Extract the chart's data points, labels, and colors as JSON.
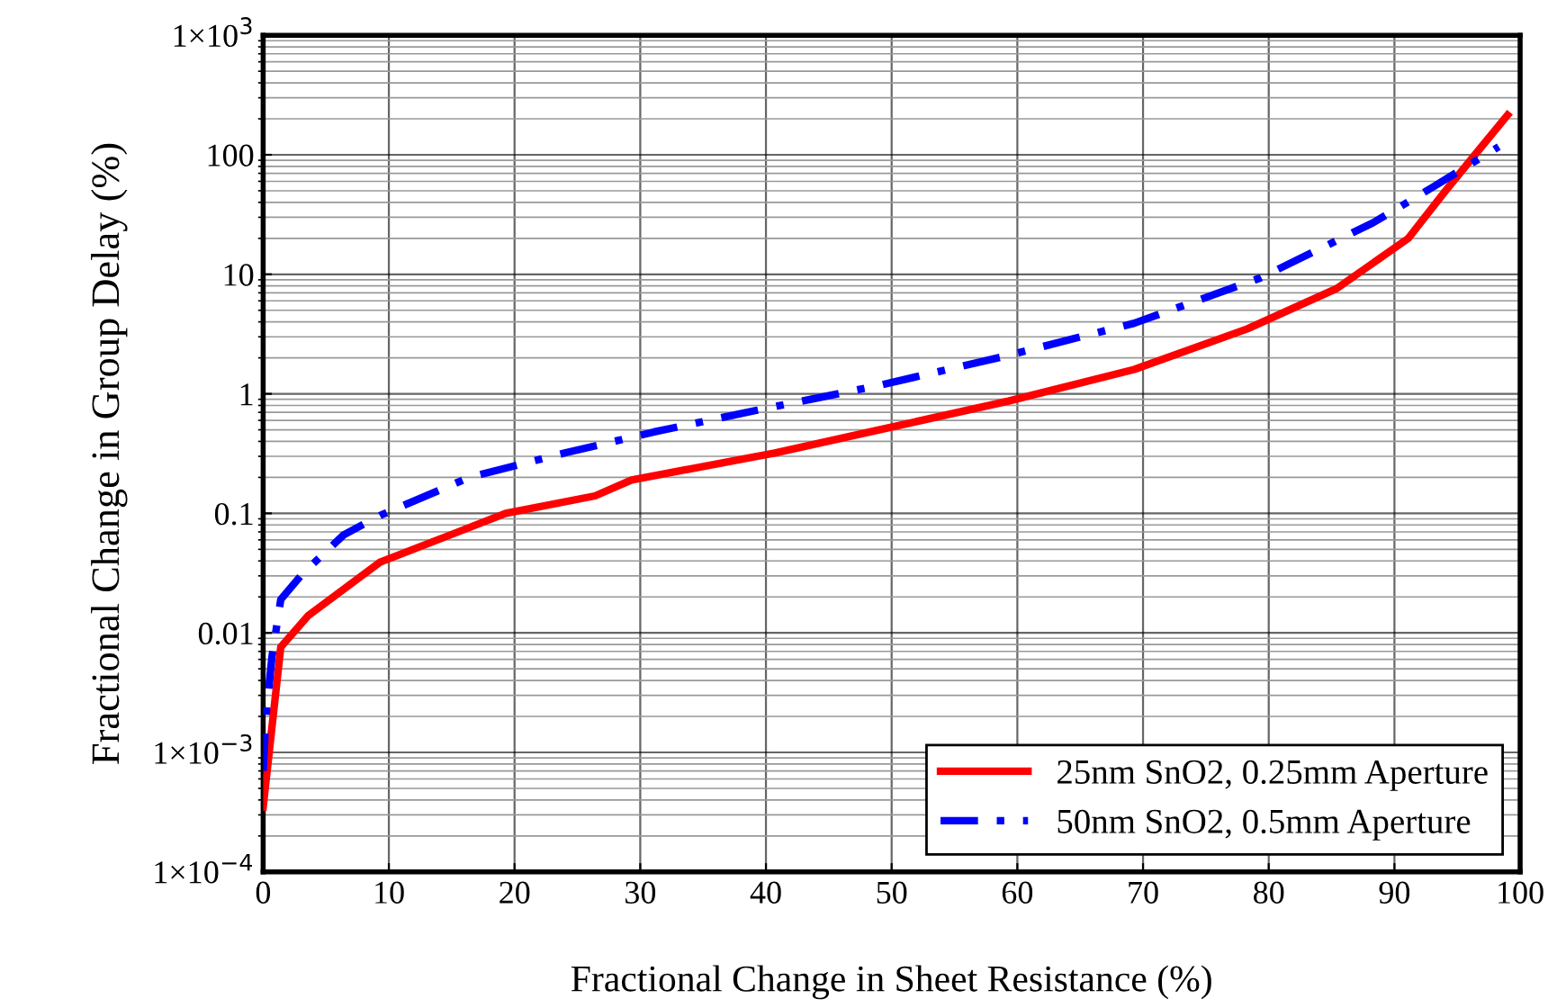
{
  "chart_data": {
    "type": "line",
    "xlabel": "Fractional Change in Sheet Resistance (%)",
    "ylabel": "Fractional Change in Group Delay (%)",
    "log": "y",
    "xlim": [
      0,
      100
    ],
    "ylim": [
      0.0001,
      1000
    ],
    "xticks": [
      0,
      10,
      20,
      30,
      40,
      50,
      60,
      70,
      80,
      90,
      100
    ],
    "yticks": [
      {
        "value": 0.0001,
        "label": "1×10$^{−4}$"
      },
      {
        "value": 0.001,
        "label": "1×10$^{−3}$"
      },
      0.01,
      0.1,
      1,
      10,
      100,
      {
        "value": 1000,
        "label": "1×10$^{3}$"
      }
    ],
    "grid": true,
    "legend": "bottom right",
    "marker": "none",
    "series": [
      {
        "name": "25nm SnO2, 0.25mm Aperture",
        "color": "#ff0000",
        "line_style": "solid",
        "x": [
          0,
          1.4,
          3.6,
          9.3,
          19.3,
          26.4,
          29.3,
          40.7,
          49,
          59.3,
          69.3,
          78.3,
          85.4,
          91.1,
          94,
          96.4,
          99
        ],
        "values": [
          0.00035,
          0.0076,
          0.014,
          0.039,
          0.1,
          0.14,
          0.19,
          0.32,
          0.5,
          0.87,
          1.6,
          3.5,
          7.6,
          20,
          49,
          100,
          215
        ]
      },
      {
        "name": "50nm SnO2, 0.5mm Aperture",
        "color": "#0000ff",
        "line_style": "dashdot",
        "x": [
          0,
          0.2,
          0.7,
          1.4,
          3.1,
          6.4,
          9.3,
          16.4,
          24,
          31.1,
          39.3,
          48.9,
          59.3,
          69.3,
          79.3,
          88.3,
          93.1,
          98.3
        ],
        "values": [
          0.0007,
          0.0019,
          0.0063,
          0.019,
          0.031,
          0.066,
          0.096,
          0.2,
          0.32,
          0.48,
          0.73,
          1.17,
          2.1,
          3.9,
          9.3,
          27,
          54,
          117
        ]
      }
    ]
  }
}
